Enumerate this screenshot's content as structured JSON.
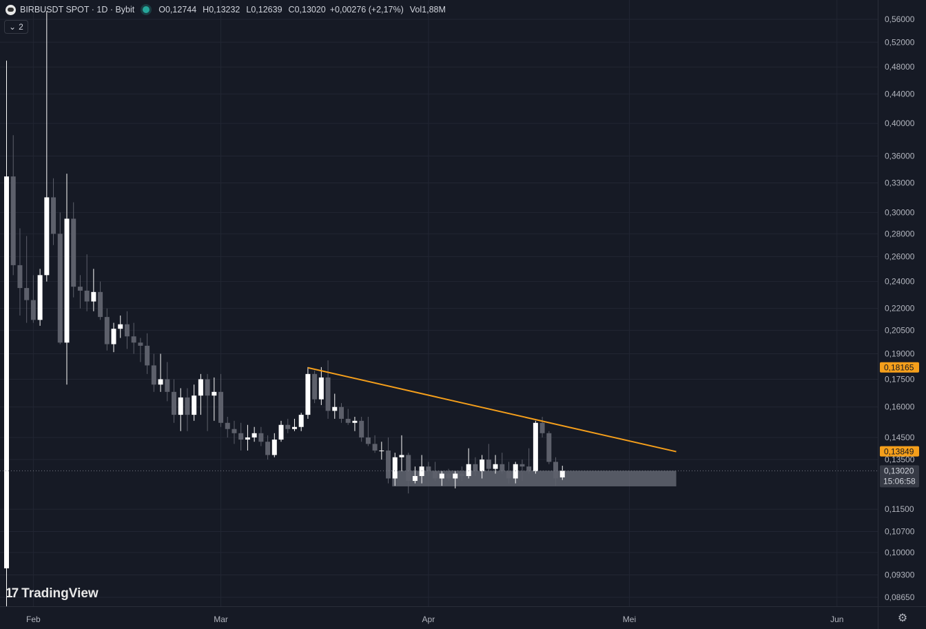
{
  "header": {
    "symbol_line": "BIRBUSDT SPOT · 1D · Bybit",
    "o_label": "O",
    "o_value": "0,12744",
    "h_label": "H",
    "h_value": "0,13232",
    "l_label": "L",
    "l_value": "0,12639",
    "c_label": "C",
    "c_value": "0,13020",
    "change": "+0,00276 (+2,17%)",
    "vol_label": "Vol",
    "vol_value": "1,88M",
    "indicators_count": "2"
  },
  "watermark": "TradingView",
  "colors": {
    "background": "#161a25",
    "up": "#ffffff",
    "down": "#5d606b",
    "trendline": "#f59f1b",
    "zone": "#787b86"
  },
  "chart_data": {
    "type": "candlestick",
    "scale": "log",
    "ylim": [
      0.0845,
      0.585
    ],
    "y_ticks": [
      {
        "v": 0.56,
        "label": "0,56000"
      },
      {
        "v": 0.52,
        "label": "0,52000"
      },
      {
        "v": 0.48,
        "label": "0,48000"
      },
      {
        "v": 0.44,
        "label": "0,44000"
      },
      {
        "v": 0.4,
        "label": "0,40000"
      },
      {
        "v": 0.36,
        "label": "0,36000"
      },
      {
        "v": 0.33,
        "label": "0,33000"
      },
      {
        "v": 0.3,
        "label": "0,30000"
      },
      {
        "v": 0.28,
        "label": "0,28000"
      },
      {
        "v": 0.26,
        "label": "0,26000"
      },
      {
        "v": 0.24,
        "label": "0,24000"
      },
      {
        "v": 0.22,
        "label": "0,22000"
      },
      {
        "v": 0.205,
        "label": "0,20500"
      },
      {
        "v": 0.19,
        "label": "0,19000"
      },
      {
        "v": 0.175,
        "label": "0,17500"
      },
      {
        "v": 0.16,
        "label": "0,16000"
      },
      {
        "v": 0.145,
        "label": "0,14500"
      },
      {
        "v": 0.135,
        "label": "0,13500"
      },
      {
        "v": 0.115,
        "label": "0,11500"
      },
      {
        "v": 0.107,
        "label": "0,10700"
      },
      {
        "v": 0.1,
        "label": "0,10000"
      },
      {
        "v": 0.093,
        "label": "0,09300"
      },
      {
        "v": 0.0865,
        "label": "0,08650"
      }
    ],
    "x_ticks": [
      {
        "day": 5,
        "label": "Feb"
      },
      {
        "day": 33,
        "label": "Mar"
      },
      {
        "day": 64,
        "label": "Apr"
      },
      {
        "day": 94,
        "label": "Mei"
      },
      {
        "day": 125,
        "label": "Jun"
      }
    ],
    "price_labels": [
      {
        "v": 0.18165,
        "label": "0,18165",
        "color": "#f59f1b"
      },
      {
        "v": 0.13849,
        "label": "0,13849",
        "color": "#f59f1b"
      },
      {
        "v": 0.1302,
        "label": "0,13020",
        "sub": "15:06:58",
        "color": "#363a45"
      }
    ],
    "trendline": {
      "start": {
        "day": 46,
        "price": 0.18165
      },
      "end": {
        "day": 101,
        "price": 0.13849
      }
    },
    "zone": {
      "start_day": 59,
      "end_day": 101,
      "top": 0.1302,
      "bottom": 0.1238
    },
    "candles": [
      {
        "d": 1,
        "o": 0.095,
        "h": 0.49,
        "l": 0.084,
        "c": 0.337
      },
      {
        "d": 2,
        "o": 0.337,
        "h": 0.385,
        "l": 0.245,
        "c": 0.253
      },
      {
        "d": 3,
        "o": 0.253,
        "h": 0.285,
        "l": 0.215,
        "c": 0.235
      },
      {
        "d": 4,
        "o": 0.235,
        "h": 0.278,
        "l": 0.21,
        "c": 0.226
      },
      {
        "d": 5,
        "o": 0.226,
        "h": 0.245,
        "l": 0.21,
        "c": 0.212
      },
      {
        "d": 6,
        "o": 0.212,
        "h": 0.25,
        "l": 0.208,
        "c": 0.245
      },
      {
        "d": 7,
        "o": 0.245,
        "h": 0.575,
        "l": 0.24,
        "c": 0.315
      },
      {
        "d": 8,
        "o": 0.315,
        "h": 0.335,
        "l": 0.27,
        "c": 0.28
      },
      {
        "d": 9,
        "o": 0.28,
        "h": 0.3,
        "l": 0.196,
        "c": 0.197
      },
      {
        "d": 10,
        "o": 0.197,
        "h": 0.34,
        "l": 0.172,
        "c": 0.294
      },
      {
        "d": 11,
        "o": 0.294,
        "h": 0.31,
        "l": 0.228,
        "c": 0.236
      },
      {
        "d": 12,
        "o": 0.236,
        "h": 0.245,
        "l": 0.22,
        "c": 0.233
      },
      {
        "d": 13,
        "o": 0.233,
        "h": 0.262,
        "l": 0.218,
        "c": 0.225
      },
      {
        "d": 14,
        "o": 0.225,
        "h": 0.25,
        "l": 0.218,
        "c": 0.232
      },
      {
        "d": 15,
        "o": 0.232,
        "h": 0.24,
        "l": 0.212,
        "c": 0.214
      },
      {
        "d": 16,
        "o": 0.214,
        "h": 0.22,
        "l": 0.192,
        "c": 0.196
      },
      {
        "d": 17,
        "o": 0.196,
        "h": 0.21,
        "l": 0.191,
        "c": 0.206
      },
      {
        "d": 18,
        "o": 0.206,
        "h": 0.215,
        "l": 0.2,
        "c": 0.209
      },
      {
        "d": 19,
        "o": 0.209,
        "h": 0.218,
        "l": 0.193,
        "c": 0.201
      },
      {
        "d": 20,
        "o": 0.201,
        "h": 0.21,
        "l": 0.19,
        "c": 0.197
      },
      {
        "d": 21,
        "o": 0.197,
        "h": 0.2,
        "l": 0.185,
        "c": 0.195
      },
      {
        "d": 22,
        "o": 0.195,
        "h": 0.203,
        "l": 0.178,
        "c": 0.183
      },
      {
        "d": 23,
        "o": 0.183,
        "h": 0.19,
        "l": 0.168,
        "c": 0.172
      },
      {
        "d": 24,
        "o": 0.172,
        "h": 0.19,
        "l": 0.168,
        "c": 0.175
      },
      {
        "d": 25,
        "o": 0.175,
        "h": 0.185,
        "l": 0.163,
        "c": 0.168
      },
      {
        "d": 26,
        "o": 0.168,
        "h": 0.175,
        "l": 0.152,
        "c": 0.156
      },
      {
        "d": 27,
        "o": 0.156,
        "h": 0.17,
        "l": 0.148,
        "c": 0.165
      },
      {
        "d": 28,
        "o": 0.165,
        "h": 0.17,
        "l": 0.148,
        "c": 0.156
      },
      {
        "d": 29,
        "o": 0.156,
        "h": 0.172,
        "l": 0.153,
        "c": 0.166
      },
      {
        "d": 30,
        "o": 0.166,
        "h": 0.178,
        "l": 0.156,
        "c": 0.175
      },
      {
        "d": 31,
        "o": 0.175,
        "h": 0.178,
        "l": 0.148,
        "c": 0.166
      },
      {
        "d": 32,
        "o": 0.166,
        "h": 0.176,
        "l": 0.153,
        "c": 0.168
      },
      {
        "d": 33,
        "o": 0.168,
        "h": 0.178,
        "l": 0.15,
        "c": 0.152
      },
      {
        "d": 34,
        "o": 0.152,
        "h": 0.155,
        "l": 0.145,
        "c": 0.149
      },
      {
        "d": 35,
        "o": 0.149,
        "h": 0.153,
        "l": 0.142,
        "c": 0.147
      },
      {
        "d": 36,
        "o": 0.147,
        "h": 0.152,
        "l": 0.139,
        "c": 0.144
      },
      {
        "d": 37,
        "o": 0.144,
        "h": 0.151,
        "l": 0.139,
        "c": 0.145
      },
      {
        "d": 38,
        "o": 0.145,
        "h": 0.15,
        "l": 0.143,
        "c": 0.147
      },
      {
        "d": 39,
        "o": 0.147,
        "h": 0.15,
        "l": 0.141,
        "c": 0.143
      },
      {
        "d": 40,
        "o": 0.143,
        "h": 0.146,
        "l": 0.135,
        "c": 0.137
      },
      {
        "d": 41,
        "o": 0.137,
        "h": 0.147,
        "l": 0.136,
        "c": 0.144
      },
      {
        "d": 42,
        "o": 0.144,
        "h": 0.153,
        "l": 0.143,
        "c": 0.151
      },
      {
        "d": 43,
        "o": 0.151,
        "h": 0.154,
        "l": 0.147,
        "c": 0.149
      },
      {
        "d": 44,
        "o": 0.149,
        "h": 0.154,
        "l": 0.148,
        "c": 0.15
      },
      {
        "d": 45,
        "o": 0.15,
        "h": 0.157,
        "l": 0.148,
        "c": 0.156
      },
      {
        "d": 46,
        "o": 0.156,
        "h": 0.182,
        "l": 0.154,
        "c": 0.178
      },
      {
        "d": 47,
        "o": 0.178,
        "h": 0.18,
        "l": 0.162,
        "c": 0.164
      },
      {
        "d": 48,
        "o": 0.164,
        "h": 0.182,
        "l": 0.161,
        "c": 0.176
      },
      {
        "d": 49,
        "o": 0.176,
        "h": 0.186,
        "l": 0.154,
        "c": 0.158
      },
      {
        "d": 50,
        "o": 0.158,
        "h": 0.167,
        "l": 0.154,
        "c": 0.16
      },
      {
        "d": 51,
        "o": 0.16,
        "h": 0.162,
        "l": 0.152,
        "c": 0.154
      },
      {
        "d": 52,
        "o": 0.154,
        "h": 0.159,
        "l": 0.151,
        "c": 0.152
      },
      {
        "d": 53,
        "o": 0.152,
        "h": 0.155,
        "l": 0.148,
        "c": 0.153
      },
      {
        "d": 54,
        "o": 0.153,
        "h": 0.155,
        "l": 0.143,
        "c": 0.145
      },
      {
        "d": 55,
        "o": 0.145,
        "h": 0.155,
        "l": 0.141,
        "c": 0.142
      },
      {
        "d": 56,
        "o": 0.142,
        "h": 0.146,
        "l": 0.138,
        "c": 0.139
      },
      {
        "d": 57,
        "o": 0.139,
        "h": 0.143,
        "l": 0.135,
        "c": 0.139
      },
      {
        "d": 58,
        "o": 0.139,
        "h": 0.145,
        "l": 0.125,
        "c": 0.127
      },
      {
        "d": 59,
        "o": 0.127,
        "h": 0.138,
        "l": 0.124,
        "c": 0.136
      },
      {
        "d": 60,
        "o": 0.136,
        "h": 0.146,
        "l": 0.13,
        "c": 0.137
      },
      {
        "d": 61,
        "o": 0.137,
        "h": 0.138,
        "l": 0.121,
        "c": 0.126
      },
      {
        "d": 62,
        "o": 0.126,
        "h": 0.132,
        "l": 0.125,
        "c": 0.128
      },
      {
        "d": 63,
        "o": 0.128,
        "h": 0.137,
        "l": 0.125,
        "c": 0.132
      },
      {
        "d": 64,
        "o": 0.132,
        "h": 0.134,
        "l": 0.128,
        "c": 0.13
      },
      {
        "d": 65,
        "o": 0.13,
        "h": 0.134,
        "l": 0.126,
        "c": 0.127
      },
      {
        "d": 66,
        "o": 0.127,
        "h": 0.13,
        "l": 0.124,
        "c": 0.129
      },
      {
        "d": 67,
        "o": 0.129,
        "h": 0.131,
        "l": 0.126,
        "c": 0.127
      },
      {
        "d": 68,
        "o": 0.127,
        "h": 0.13,
        "l": 0.123,
        "c": 0.129
      },
      {
        "d": 69,
        "o": 0.129,
        "h": 0.132,
        "l": 0.126,
        "c": 0.128
      },
      {
        "d": 70,
        "o": 0.128,
        "h": 0.14,
        "l": 0.127,
        "c": 0.133
      },
      {
        "d": 71,
        "o": 0.133,
        "h": 0.136,
        "l": 0.128,
        "c": 0.13
      },
      {
        "d": 72,
        "o": 0.13,
        "h": 0.137,
        "l": 0.127,
        "c": 0.135
      },
      {
        "d": 73,
        "o": 0.135,
        "h": 0.142,
        "l": 0.13,
        "c": 0.131
      },
      {
        "d": 74,
        "o": 0.131,
        "h": 0.137,
        "l": 0.129,
        "c": 0.133
      },
      {
        "d": 75,
        "o": 0.133,
        "h": 0.138,
        "l": 0.129,
        "c": 0.13
      },
      {
        "d": 76,
        "o": 0.13,
        "h": 0.134,
        "l": 0.125,
        "c": 0.127
      },
      {
        "d": 77,
        "o": 0.127,
        "h": 0.134,
        "l": 0.125,
        "c": 0.133
      },
      {
        "d": 78,
        "o": 0.133,
        "h": 0.135,
        "l": 0.126,
        "c": 0.132
      },
      {
        "d": 79,
        "o": 0.132,
        "h": 0.14,
        "l": 0.129,
        "c": 0.13
      },
      {
        "d": 80,
        "o": 0.13,
        "h": 0.153,
        "l": 0.129,
        "c": 0.152
      },
      {
        "d": 81,
        "o": 0.152,
        "h": 0.155,
        "l": 0.145,
        "c": 0.147
      },
      {
        "d": 82,
        "o": 0.147,
        "h": 0.148,
        "l": 0.133,
        "c": 0.134
      },
      {
        "d": 83,
        "o": 0.134,
        "h": 0.136,
        "l": 0.124,
        "c": 0.127
      },
      {
        "d": 84,
        "o": 0.12744,
        "h": 0.13232,
        "l": 0.12639,
        "c": 0.1302
      }
    ]
  }
}
